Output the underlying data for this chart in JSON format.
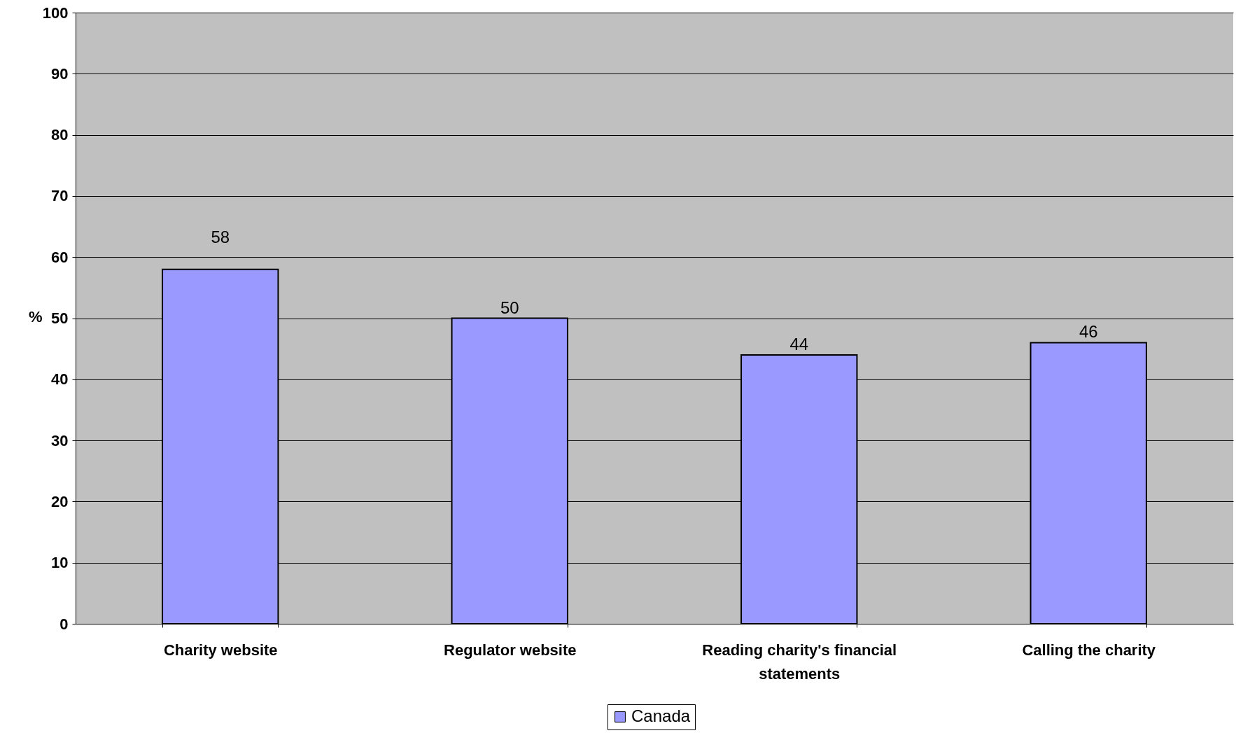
{
  "chart_data": {
    "type": "bar",
    "ylabel": "%",
    "categories": [
      "Charity website",
      "Regulator website",
      "Reading charity's financial statements",
      "Calling the charity"
    ],
    "series": [
      {
        "name": "Canada",
        "color": "#9999ff",
        "values": [
          58,
          50,
          44,
          46
        ]
      }
    ],
    "ylim": [
      0,
      100
    ],
    "yticks": [
      0,
      10,
      20,
      30,
      40,
      50,
      60,
      70,
      80,
      90,
      100
    ],
    "grid": "y",
    "legend": "bottom",
    "data_labels": true
  }
}
